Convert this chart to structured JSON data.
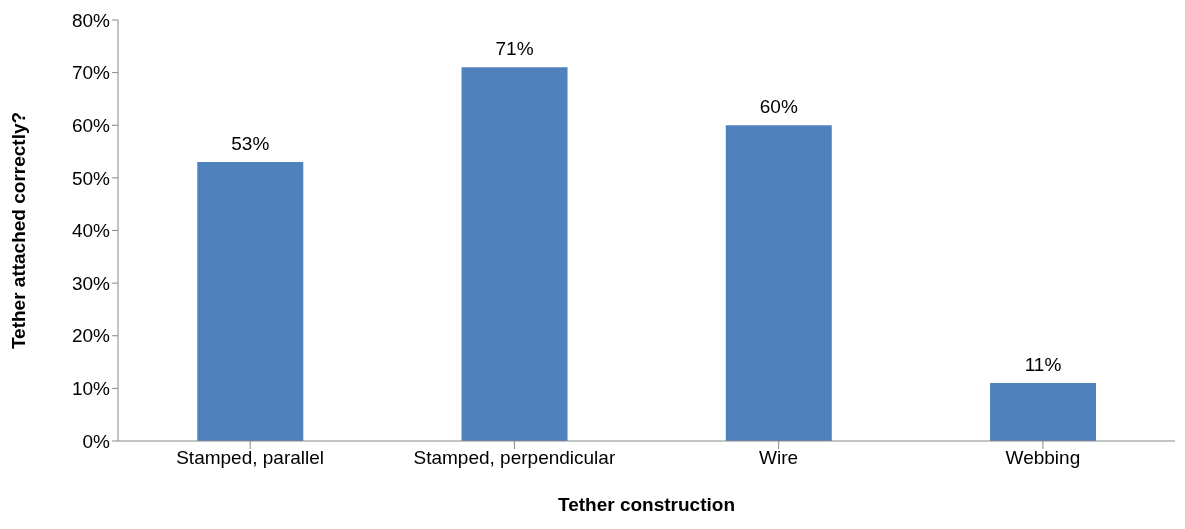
{
  "chart_data": {
    "type": "bar",
    "xlabel": "Tether construction",
    "ylabel": "Tether attached correctly?",
    "categories": [
      "Stamped, parallel",
      "Stamped, perpendicular",
      "Wire",
      "Webbing"
    ],
    "values": [
      53,
      71,
      60,
      11
    ],
    "value_labels": [
      "53%",
      "71%",
      "60%",
      "11%"
    ],
    "color": "#4f81bd",
    "ylim": [
      0,
      80
    ],
    "yticks": [
      {
        "value": 0,
        "label": "0%"
      },
      {
        "value": 10,
        "label": "10%"
      },
      {
        "value": 20,
        "label": "20%"
      },
      {
        "value": 30,
        "label": "30%"
      },
      {
        "value": 40,
        "label": "40%"
      },
      {
        "value": 50,
        "label": "50%"
      },
      {
        "value": 60,
        "label": "60%"
      },
      {
        "value": 70,
        "label": "70%"
      },
      {
        "value": 80,
        "label": "80%"
      }
    ],
    "grid": false,
    "legend": false
  }
}
